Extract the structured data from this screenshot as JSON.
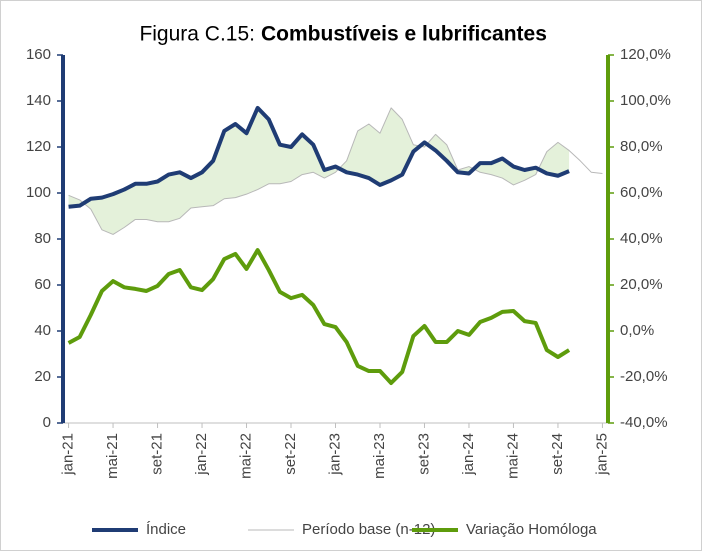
{
  "chart_data": {
    "type": "line",
    "figure_label": "Figura C.15:",
    "title": "Combustíveis e lubrificantes",
    "categories": [
      "jan-21",
      null,
      null,
      null,
      "mai-21",
      null,
      null,
      null,
      "set-21",
      null,
      null,
      null,
      "jan-22",
      null,
      null,
      null,
      "mai-22",
      null,
      null,
      null,
      "set-22",
      null,
      null,
      null,
      "jan-23",
      null,
      null,
      null,
      "mai-23",
      null,
      null,
      null,
      "set-23",
      null,
      null,
      null,
      "jan-24",
      null,
      null,
      null,
      "mai-24",
      null,
      null,
      null,
      "set-24",
      null,
      null,
      null,
      "jan-25"
    ],
    "ylim": [
      0,
      160
    ],
    "yticks": [
      0,
      20,
      40,
      60,
      80,
      100,
      120,
      140,
      160
    ],
    "y2lim": [
      -40,
      120
    ],
    "y2ticks": [
      {
        "value": -40,
        "label": "-40,0%"
      },
      {
        "value": -20,
        "label": "-20,0%"
      },
      {
        "value": 0,
        "label": "0,0%"
      },
      {
        "value": 20,
        "label": "20,0%"
      },
      {
        "value": 40,
        "label": "40,0%"
      },
      {
        "value": 60,
        "label": "60,0%"
      },
      {
        "value": 80,
        "label": "80,0%"
      },
      {
        "value": 100,
        "label": "100,0%"
      },
      {
        "value": 120,
        "label": "120,0%"
      }
    ],
    "fill_between": true,
    "fill_color": "#e4f1da",
    "legend": "bottom",
    "series": [
      {
        "name": "Índice",
        "color": "#1f3c74",
        "width": 4,
        "values": [
          94,
          94.5,
          97.5,
          98,
          99.5,
          101.5,
          104,
          104,
          105,
          108,
          109,
          106.5,
          109,
          114,
          127,
          130,
          126,
          137,
          132,
          121,
          120,
          125.5,
          121,
          110,
          111.5,
          109,
          108,
          106.5,
          103.5,
          105.5,
          108,
          118,
          122,
          118.5,
          114,
          109,
          108.5,
          113,
          113,
          115,
          111.5,
          110,
          111,
          108.5,
          107.5,
          109.5,
          null,
          null,
          null
        ]
      },
      {
        "name": "Período base (n-12)",
        "color": "#b8b8b8",
        "width": 1,
        "values": [
          99,
          97,
          93,
          84,
          82,
          85,
          88.5,
          88.5,
          87.5,
          87.5,
          89,
          93.5,
          94,
          94.5,
          97.5,
          98,
          99.5,
          101.5,
          104,
          104,
          105,
          108,
          109,
          106.5,
          109,
          114,
          127,
          130,
          126,
          137,
          132,
          121,
          120,
          125.5,
          121,
          110,
          111.5,
          109,
          108,
          106.5,
          103.5,
          105.5,
          108,
          118,
          122,
          118.5,
          114,
          109,
          108.5
        ]
      },
      {
        "name": "Variação Homóloga",
        "color": "#5e9c0c",
        "width": 4,
        "axis": "y2",
        "values": [
          -5.2,
          -2.6,
          7,
          17.4,
          21.7,
          19,
          18.3,
          17.4,
          19.6,
          24.8,
          26.5,
          19,
          17.8,
          22.6,
          31.3,
          33.5,
          27,
          35.2,
          26.5,
          17,
          14.3,
          15.7,
          11.3,
          3,
          1.7,
          -4.8,
          -15.2,
          -17.4,
          -17.4,
          -22.6,
          -17.8,
          -2.2,
          2.2,
          -4.8,
          -4.8,
          0,
          -1.7,
          3.9,
          5.7,
          8.3,
          8.7,
          4.3,
          3.5,
          -8.3,
          -11.3,
          -8.3,
          null,
          null,
          null
        ]
      }
    ]
  }
}
